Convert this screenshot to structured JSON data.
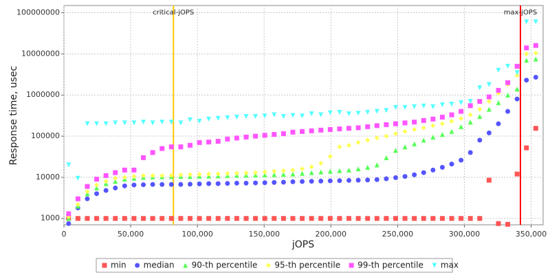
{
  "chart_data": {
    "type": "scatter",
    "log_y": true,
    "grid": true,
    "legend": "bottom",
    "xlabel": "jOPS",
    "ylabel": "Response time, usec",
    "xlim": [
      0,
      359000
    ],
    "ylim": [
      700,
      150000000
    ],
    "xticks": [
      0,
      {
        "value": 50000,
        "label": "50,000"
      },
      {
        "value": 100000,
        "label": "100,000"
      },
      {
        "value": 150000,
        "label": "150,000"
      },
      {
        "value": 200000,
        "label": "200,000"
      },
      {
        "value": 250000,
        "label": "250,000"
      },
      {
        "value": 300000,
        "label": "300,000"
      },
      {
        "value": 350000,
        "label": "350,000"
      }
    ],
    "yticks": [
      1000,
      10000,
      100000,
      1000000,
      10000000,
      100000000
    ],
    "annotations": [
      {
        "label": "critical-jOPS",
        "x": 82000,
        "color": "#ffc800"
      },
      {
        "label": "max-jOPS",
        "x": 342000,
        "color": "#ff0000"
      }
    ],
    "x": [
      3500,
      10500,
      17500,
      24500,
      31500,
      38500,
      45500,
      52500,
      59500,
      66500,
      73500,
      80500,
      87500,
      94500,
      101500,
      108500,
      115500,
      122500,
      129500,
      136500,
      143500,
      150500,
      157500,
      164500,
      171500,
      178500,
      185500,
      192500,
      199500,
      206500,
      213500,
      220500,
      227500,
      234500,
      241500,
      248500,
      255500,
      262500,
      269500,
      276500,
      283500,
      290500,
      297500,
      304500,
      311500,
      318500,
      325500,
      332500,
      339500,
      346500,
      353500
    ],
    "series": [
      {
        "name": "min",
        "color": "#ff5555",
        "marker": "square",
        "values": [
          1000,
          1000,
          1000,
          1000,
          1000,
          1000,
          1000,
          1000,
          1000,
          1000,
          1000,
          1000,
          1000,
          1000,
          1000,
          1000,
          1000,
          1000,
          1000,
          1000,
          1000,
          1000,
          1000,
          1000,
          1000,
          1000,
          1000,
          1000,
          1000,
          1000,
          1000,
          1000,
          1000,
          1000,
          1000,
          1000,
          1000,
          1000,
          1000,
          1000,
          1000,
          1000,
          1000,
          1000,
          1000,
          8500,
          750,
          720,
          12000,
          52000,
          155000
        ]
      },
      {
        "name": "median",
        "color": "#5555ff",
        "marker": "circle",
        "values": [
          750,
          1800,
          3000,
          4000,
          4800,
          5500,
          6200,
          6500,
          6600,
          6700,
          6700,
          6700,
          6700,
          6800,
          6900,
          7000,
          7000,
          7100,
          7200,
          7200,
          7300,
          7400,
          7500,
          7600,
          7800,
          7900,
          8000,
          8100,
          8200,
          8300,
          8400,
          8500,
          8600,
          8800,
          9200,
          9800,
          10500,
          11500,
          13000,
          15000,
          17500,
          21000,
          26000,
          40000,
          80000,
          120000,
          200000,
          400000,
          800000,
          2300000,
          2700000
        ]
      },
      {
        "name": "90-th percentile",
        "color": "#55ff55",
        "marker": "triangle",
        "values": [
          1000,
          2000,
          4000,
          5500,
          7000,
          8000,
          9000,
          9500,
          10000,
          10200,
          10300,
          10400,
          10500,
          10500,
          10600,
          10700,
          10800,
          11000,
          11100,
          11200,
          11300,
          11400,
          11600,
          11800,
          12000,
          12500,
          13000,
          13500,
          14000,
          14500,
          15000,
          16000,
          17500,
          20000,
          30000,
          45000,
          55000,
          65000,
          80000,
          95000,
          110000,
          130000,
          170000,
          220000,
          300000,
          450000,
          650000,
          1000000,
          1400000,
          7000000,
          7500000
        ]
      },
      {
        "name": "95-th percentile",
        "color": "#ffff55",
        "marker": "diamond",
        "values": [
          1100,
          2200,
          4500,
          6500,
          8000,
          9500,
          10000,
          10500,
          11000,
          11000,
          11000,
          11200,
          11500,
          11600,
          11800,
          12000,
          12200,
          12400,
          12600,
          12800,
          13000,
          13500,
          14000,
          14500,
          15000,
          16000,
          18000,
          22000,
          32000,
          55000,
          60000,
          70000,
          80000,
          90000,
          100000,
          115000,
          130000,
          145000,
          160000,
          180000,
          200000,
          230000,
          270000,
          330000,
          450000,
          700000,
          1100000,
          1800000,
          3000000,
          10000000,
          10500000
        ]
      },
      {
        "name": "99-th percentile",
        "color": "#ff55ff",
        "marker": "square",
        "values": [
          1300,
          3000,
          6000,
          9000,
          11000,
          13000,
          15000,
          15000,
          30000,
          40000,
          50000,
          55000,
          55000,
          60000,
          70000,
          72000,
          75000,
          85000,
          90000,
          95000,
          100000,
          105000,
          110000,
          115000,
          125000,
          130000,
          135000,
          140000,
          145000,
          150000,
          155000,
          160000,
          170000,
          180000,
          190000,
          200000,
          210000,
          220000,
          240000,
          260000,
          290000,
          330000,
          400000,
          550000,
          700000,
          900000,
          1300000,
          2000000,
          5000000,
          14000000,
          16000000
        ]
      },
      {
        "name": "max",
        "color": "#55ffff",
        "marker": "down-triangle",
        "values": [
          20000,
          9500,
          200000,
          200000,
          200000,
          210000,
          210000,
          210000,
          220000,
          210000,
          220000,
          220000,
          210000,
          250000,
          230000,
          260000,
          270000,
          280000,
          290000,
          300000,
          300000,
          310000,
          330000,
          300000,
          320000,
          310000,
          350000,
          330000,
          370000,
          380000,
          350000,
          360000,
          380000,
          400000,
          420000,
          500000,
          500000,
          520000,
          540000,
          520000,
          580000,
          600000,
          650000,
          700000,
          1500000,
          1800000,
          4000000,
          5000000,
          3500000,
          60000000,
          60000000
        ]
      }
    ]
  }
}
